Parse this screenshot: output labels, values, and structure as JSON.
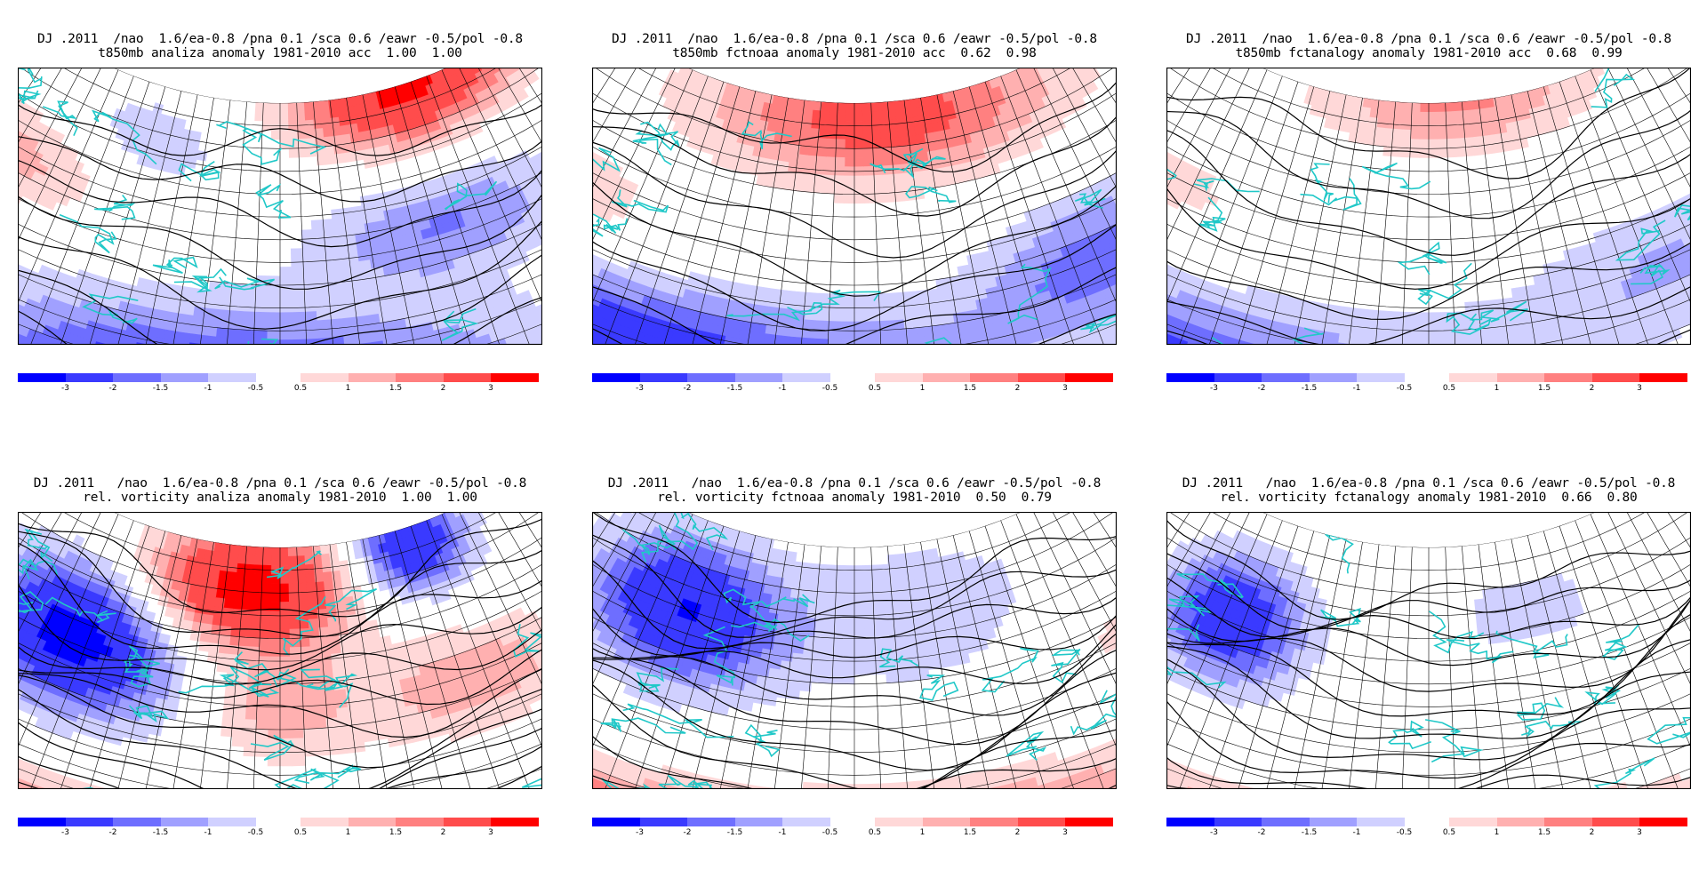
{
  "panels": [
    {
      "title_line1": "DJ .2011  /nao  1.6/ea-0.8 /pna 0.1 /sca 0.6 /eawr -0.5/pol -0.8",
      "title_line2": "t850mb analiza anomaly 1981-2010 acc  1.00  1.00",
      "field": "temperature",
      "pattern": "analiza"
    },
    {
      "title_line1": "DJ .2011  /nao  1.6/ea-0.8 /pna 0.1 /sca 0.6 /eawr -0.5/pol -0.8",
      "title_line2": "t850mb fctnoaa anomaly 1981-2010 acc  0.62  0.98",
      "field": "temperature",
      "pattern": "fctnoaa"
    },
    {
      "title_line1": "DJ .2011  /nao  1.6/ea-0.8 /pna 0.1 /sca 0.6 /eawr -0.5/pol -0.8",
      "title_line2": "t850mb fctanalogy anomaly 1981-2010 acc  0.68  0.99",
      "field": "temperature",
      "pattern": "fctanalogy"
    },
    {
      "title_line1": "DJ .2011   /nao  1.6/ea-0.8 /pna 0.1 /sca 0.6 /eawr -0.5/pol -0.8",
      "title_line2": "rel. vorticity analiza anomaly 1981-2010  1.00  1.00",
      "field": "vorticity",
      "pattern": "analiza"
    },
    {
      "title_line1": "DJ .2011   /nao  1.6/ea-0.8 /pna 0.1 /sca 0.6 /eawr -0.5/pol -0.8",
      "title_line2": "rel. vorticity fctnoaa anomaly 1981-2010  0.50  0.79",
      "field": "vorticity",
      "pattern": "fctnoaa"
    },
    {
      "title_line1": "DJ .2011   /nao  1.6/ea-0.8 /pna 0.1 /sca 0.6 /eawr -0.5/pol -0.8",
      "title_line2": "rel. vorticity fctanalogy anomaly 1981-2010  0.66  0.80",
      "field": "vorticity",
      "pattern": "fctanalogy"
    }
  ],
  "colorbar": {
    "tick_labels": [
      "-3",
      "-2",
      "-1.5",
      "-1",
      "-0.5",
      "0.5",
      "1",
      "1.5",
      "2",
      "3"
    ],
    "colors_negative": [
      "#0000ff",
      "#3a3aff",
      "#6e6eff",
      "#a0a0ff",
      "#d0d0ff"
    ],
    "colors_positive": [
      "#ffd8d8",
      "#ffb0b0",
      "#ff8080",
      "#ff4c4c",
      "#ff0000"
    ]
  },
  "colors": {
    "coastline": "#20c8c8",
    "grid": "#000000",
    "contour": "#000000"
  }
}
